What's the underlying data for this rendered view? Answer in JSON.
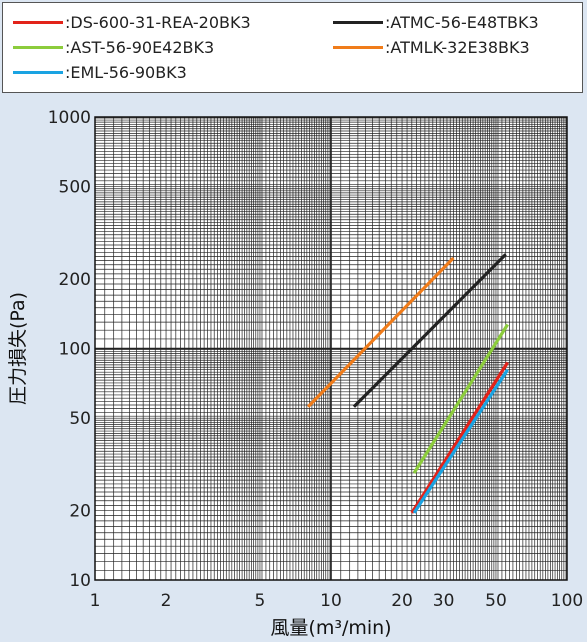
{
  "chart_data": {
    "type": "line",
    "xlabel": "風量(m³/min)",
    "ylabel": "圧力損失(Pa)",
    "x_scale": "log",
    "y_scale": "log",
    "xlim": [
      1,
      100
    ],
    "ylim": [
      10,
      1000
    ],
    "x_ticks": [
      "1",
      "2",
      "5",
      "10",
      "20",
      "30",
      "50",
      "100"
    ],
    "y_ticks": [
      "1000",
      "500",
      "200",
      "100",
      "50",
      "20",
      "10"
    ],
    "grid": true,
    "legend_position": "top",
    "series": [
      {
        "name": ":DS-600-31-REA-20BK3",
        "color": "#e2231a",
        "x": [
          22,
          56
        ],
        "y": [
          19.5,
          87
        ]
      },
      {
        "name": ":ATMC-56-E48TBK3",
        "color": "#222222",
        "x": [
          12.5,
          55
        ],
        "y": [
          56,
          255
        ]
      },
      {
        "name": ":AST-56-90E42BK3",
        "color": "#8ccc3c",
        "x": [
          22.5,
          56
        ],
        "y": [
          29,
          127
        ]
      },
      {
        "name": ":ATMLK-32E38BK3",
        "color": "#f07c1a",
        "x": [
          8,
          33
        ],
        "y": [
          56,
          246
        ]
      },
      {
        "name": ":EML-56-90BK3",
        "color": "#1aa3e2",
        "x": [
          22.5,
          56
        ],
        "y": [
          19.5,
          81
        ]
      }
    ]
  }
}
